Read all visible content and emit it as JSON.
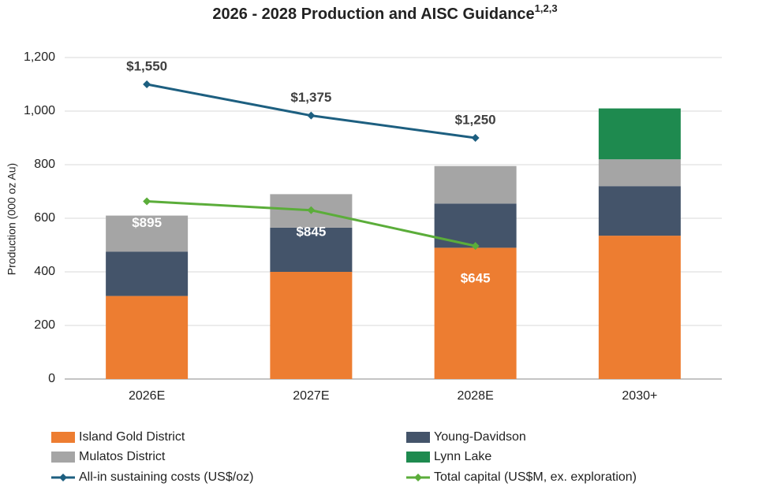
{
  "chart_data": {
    "type": "bar",
    "stacked": true,
    "title": "2026 - 2028 Production and AISC Guidance",
    "title_superscript": "1,2,3",
    "y_label": "Production (000 oz Au)",
    "categories": [
      "2026E",
      "2027E",
      "2028E",
      "2030+"
    ],
    "ylim": [
      0,
      1200
    ],
    "yticks": [
      0,
      200,
      400,
      600,
      800,
      {
        "value": 1000,
        "label": "1,000"
      },
      {
        "value": 1200,
        "label": "1,200"
      }
    ],
    "y2lim": [
      -100,
      1700
    ],
    "grid": true,
    "series": [
      {
        "name": "Island Gold District",
        "color": "#ED7D31",
        "values": [
          310,
          400,
          490,
          535
        ]
      },
      {
        "name": "Young-Davidson",
        "color": "#44546A",
        "values": [
          165,
          165,
          165,
          185
        ]
      },
      {
        "name": "Mulatos District",
        "color": "#A5A5A5",
        "values": [
          135,
          125,
          140,
          100
        ]
      },
      {
        "name": "Lynn Lake",
        "color": "#1E8A4F",
        "values": [
          null,
          null,
          null,
          190
        ]
      },
      {
        "name": "All-in sustaining costs (US$/oz)",
        "color": "#1D5F80",
        "type": "line",
        "axis": "y2",
        "values": [
          1550,
          1375,
          1250,
          null
        ],
        "value_labels": [
          "$1,550",
          "$1,375",
          "$1,250",
          null
        ]
      },
      {
        "name": "Total capital (US$M, ex. exploration)",
        "color": "#5BAD3A",
        "type": "line",
        "axis": "y2",
        "values": [
          895,
          845,
          645,
          null
        ],
        "value_labels": [
          "$895",
          "$845",
          "$645",
          null
        ]
      }
    ]
  }
}
